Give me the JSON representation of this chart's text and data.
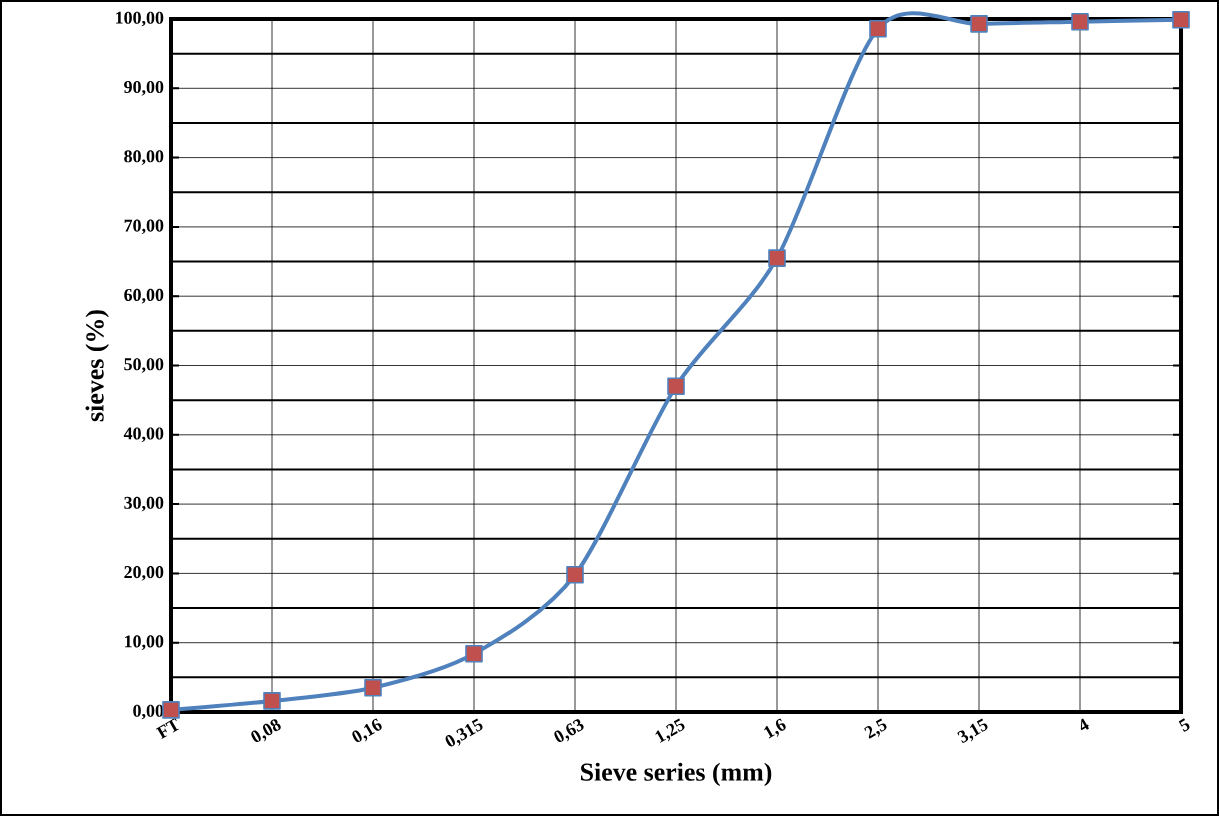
{
  "chart_data": {
    "type": "line",
    "xlabel": "Sieve series   (mm)",
    "ylabel": "sieves (%)",
    "categories": [
      "FT",
      "0,08",
      "0,16",
      "0,315",
      "0,63",
      "1,25",
      "1,6",
      "2,5",
      "3,15",
      "4",
      "5"
    ],
    "series": [
      {
        "color": "#4f81bd",
        "values": [
          0.3,
          1.6,
          3.5,
          8.4,
          19.8,
          47.0,
          65.5,
          98.6,
          99.3,
          99.6,
          99.9
        ]
      }
    ],
    "ylim": [
      0,
      100
    ],
    "yticks": [
      {
        "value": 0,
        "label": "0,00"
      },
      {
        "value": 10,
        "label": "10,00"
      },
      {
        "value": 20,
        "label": "20,00"
      },
      {
        "value": 30,
        "label": "30,00"
      },
      {
        "value": 40,
        "label": "40,00"
      },
      {
        "value": 50,
        "label": "50,00"
      },
      {
        "value": 60,
        "label": "60,00"
      },
      {
        "value": 70,
        "label": "70,00"
      },
      {
        "value": 80,
        "label": "80,00"
      },
      {
        "value": 90,
        "label": "90,00"
      },
      {
        "value": 100,
        "label": "100,00"
      }
    ],
    "grid": true,
    "marker": "square",
    "line_style": "solid"
  }
}
